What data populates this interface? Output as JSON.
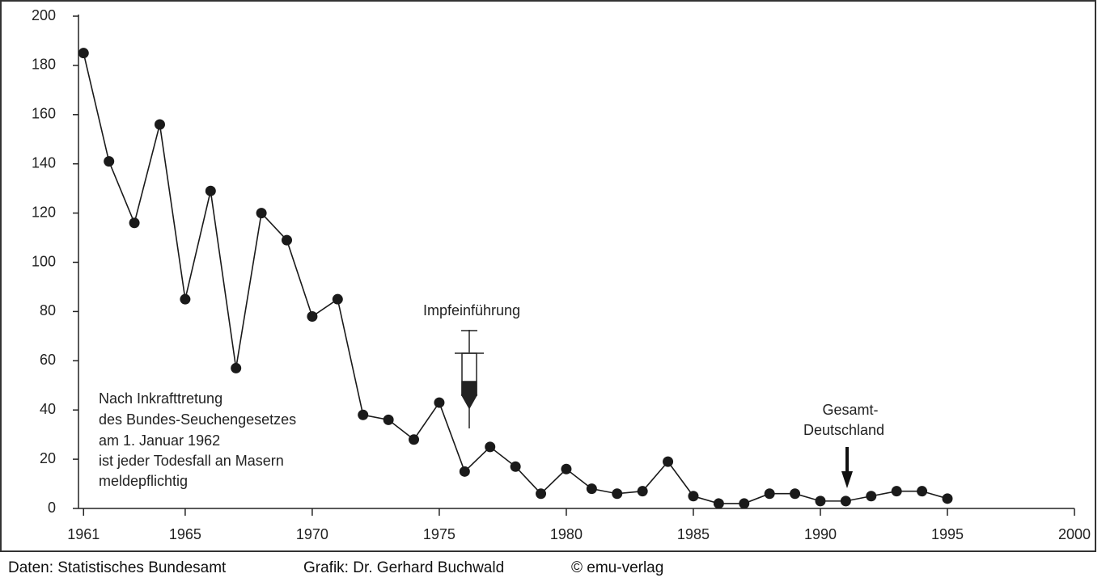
{
  "chart_data": {
    "type": "line",
    "x": [
      1961,
      1962,
      1963,
      1964,
      1965,
      1966,
      1967,
      1968,
      1969,
      1970,
      1971,
      1972,
      1973,
      1974,
      1975,
      1976,
      1977,
      1978,
      1979,
      1980,
      1981,
      1982,
      1983,
      1984,
      1985,
      1986,
      1987,
      1988,
      1989,
      1990,
      1991,
      1992,
      1993,
      1994,
      1995
    ],
    "series": [
      {
        "color": "#1a1a1a",
        "values": [
          185,
          141,
          116,
          156,
          85,
          129,
          57,
          120,
          109,
          78,
          85,
          38,
          36,
          28,
          43,
          15,
          25,
          17,
          6,
          16,
          8,
          6,
          7,
          19,
          5,
          2,
          2,
          6,
          6,
          3,
          3,
          5,
          7,
          7,
          4
        ]
      }
    ],
    "xlim": [
      1960.8,
      2000
    ],
    "xticks": [
      1961,
      1965,
      1970,
      1975,
      1980,
      1985,
      1990,
      1995,
      2000
    ],
    "ylim": [
      0,
      200
    ],
    "yticks": [
      0,
      20,
      40,
      60,
      80,
      100,
      120,
      140,
      160,
      180,
      200
    ],
    "annotations": {
      "vaccine": "Impfeinführung",
      "reunification": [
        "Gesamt-",
        "Deutschland"
      ],
      "note": [
        "Nach Inkrafttretung",
        "des Bundes-Seuchengesetzes",
        "am 1. Januar 1962",
        "ist jeder Todesfall an Masern",
        "meldepflichtig"
      ]
    },
    "footer": [
      "Daten: Statistisches Bundesamt",
      "Grafik: Dr. Gerhard Buchwald",
      "© emu-verlag"
    ]
  }
}
